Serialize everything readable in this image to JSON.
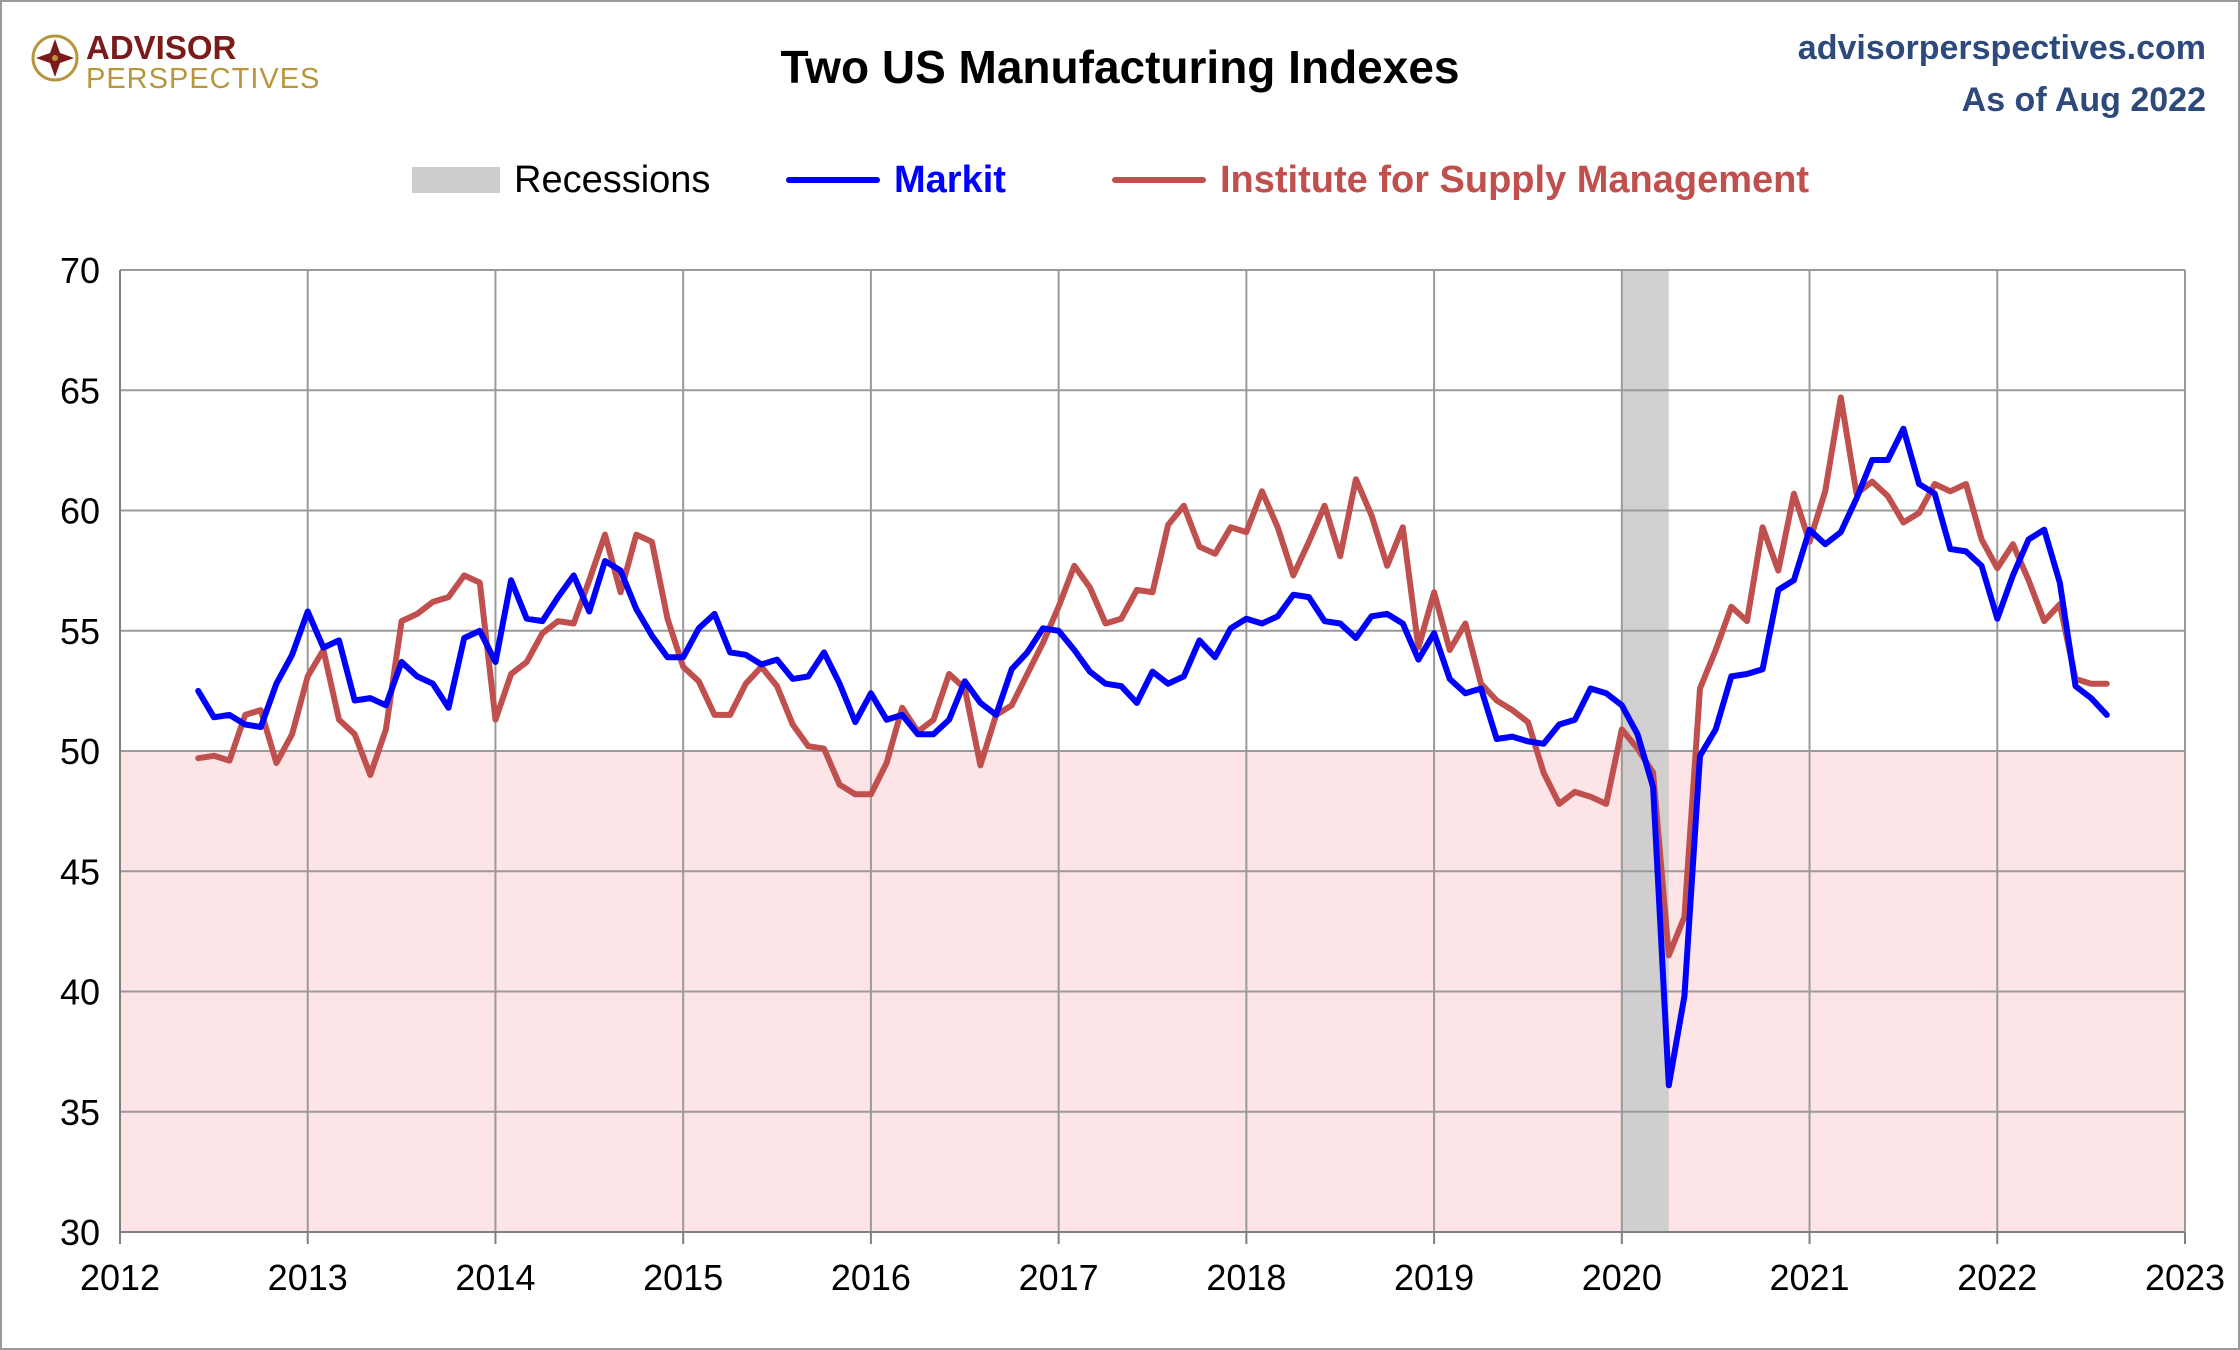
{
  "brand": {
    "name_top": "ADVISOR",
    "name_bottom": "PERSPECTIVES"
  },
  "header": {
    "title": "Two US Manufacturing Indexes",
    "site": "advisorperspectives.com",
    "as_of": "As of Aug 2022"
  },
  "colors": {
    "markit": "#0000ff",
    "ism": "#c0504d",
    "recession": "#cccccc",
    "contraction_zone": "#fde4e6",
    "grid": "#9a9a9a",
    "brand_dark": "#7a1a1a",
    "brand_gold": "#b8963e",
    "site_text": "#2e4a7a"
  },
  "legend": {
    "recessions": "Recessions",
    "markit": "Markit",
    "ism": "Institute for Supply Management"
  },
  "chart_data": {
    "type": "line",
    "title": "Two US Manufacturing Indexes",
    "xlim": [
      2012,
      2023
    ],
    "ylim": [
      30,
      70
    ],
    "x_ticks": [
      "2012",
      "2013",
      "2014",
      "2015",
      "2016",
      "2017",
      "2018",
      "2019",
      "2020",
      "2021",
      "2022",
      "2023"
    ],
    "y_ticks": [
      "30",
      "35",
      "40",
      "45",
      "50",
      "55",
      "60",
      "65",
      "70"
    ],
    "grid": true,
    "legend_position": "top",
    "contraction_below": 50,
    "recessions": [
      {
        "start": 2020.0,
        "end": 2020.25
      }
    ],
    "start": "2012-06",
    "series": [
      {
        "name": "Markit",
        "values": [
          52.5,
          51.4,
          51.5,
          51.1,
          51.0,
          52.8,
          54.0,
          55.8,
          54.3,
          54.6,
          52.1,
          52.2,
          51.9,
          53.7,
          53.1,
          52.8,
          51.8,
          54.7,
          55.0,
          53.7,
          57.1,
          55.5,
          55.4,
          56.4,
          57.3,
          55.8,
          57.9,
          57.5,
          55.9,
          54.8,
          53.9,
          53.9,
          55.1,
          55.7,
          54.1,
          54.0,
          53.6,
          53.8,
          53.0,
          53.1,
          54.1,
          52.8,
          51.2,
          52.4,
          51.3,
          51.5,
          50.7,
          50.7,
          51.3,
          52.9,
          52.0,
          51.5,
          53.4,
          54.1,
          55.1,
          55.0,
          54.2,
          53.3,
          52.8,
          52.7,
          52.0,
          53.3,
          52.8,
          53.1,
          54.6,
          53.9,
          55.1,
          55.5,
          55.3,
          55.6,
          56.5,
          56.4,
          55.4,
          55.3,
          54.7,
          55.6,
          55.7,
          55.3,
          53.8,
          54.9,
          53.0,
          52.4,
          52.6,
          50.5,
          50.6,
          50.4,
          50.3,
          51.1,
          51.3,
          52.6,
          52.4,
          51.9,
          50.7,
          48.5,
          36.1,
          39.8,
          49.8,
          50.9,
          53.1,
          53.2,
          53.4,
          56.7,
          57.1,
          59.2,
          58.6,
          59.1,
          60.5,
          62.1,
          62.1,
          63.4,
          61.1,
          60.7,
          58.4,
          58.3,
          57.7,
          55.5,
          57.3,
          58.8,
          59.2,
          57.0,
          52.7,
          52.2,
          51.5
        ]
      },
      {
        "name": "Institute for Supply Management",
        "values": [
          49.7,
          49.8,
          49.6,
          51.5,
          51.7,
          49.5,
          50.7,
          53.1,
          54.2,
          51.3,
          50.7,
          49.0,
          50.9,
          55.4,
          55.7,
          56.2,
          56.4,
          57.3,
          57.0,
          51.3,
          53.2,
          53.7,
          54.9,
          55.4,
          55.3,
          57.1,
          59.0,
          56.6,
          59.0,
          58.7,
          55.5,
          53.5,
          52.9,
          51.5,
          51.5,
          52.8,
          53.5,
          52.7,
          51.1,
          50.2,
          50.1,
          48.6,
          48.2,
          48.2,
          49.5,
          51.8,
          50.8,
          51.3,
          53.2,
          52.6,
          49.4,
          51.5,
          51.9,
          53.2,
          54.5,
          56.0,
          57.7,
          56.8,
          55.3,
          55.5,
          56.7,
          56.6,
          59.4,
          60.2,
          58.5,
          58.2,
          59.3,
          59.1,
          60.8,
          59.3,
          57.3,
          58.7,
          60.2,
          58.1,
          61.3,
          59.8,
          57.7,
          59.3,
          54.3,
          56.6,
          54.2,
          55.3,
          52.8,
          52.1,
          51.7,
          51.2,
          49.1,
          47.8,
          48.3,
          48.1,
          47.8,
          50.9,
          50.1,
          49.1,
          41.5,
          43.1,
          52.6,
          54.2,
          56.0,
          55.4,
          59.3,
          57.5,
          60.7,
          58.7,
          60.8,
          64.7,
          60.7,
          61.2,
          60.6,
          59.5,
          59.9,
          61.1,
          60.8,
          61.1,
          58.8,
          57.6,
          58.6,
          57.1,
          55.4,
          56.1,
          53.0,
          52.8,
          52.8
        ]
      }
    ]
  }
}
